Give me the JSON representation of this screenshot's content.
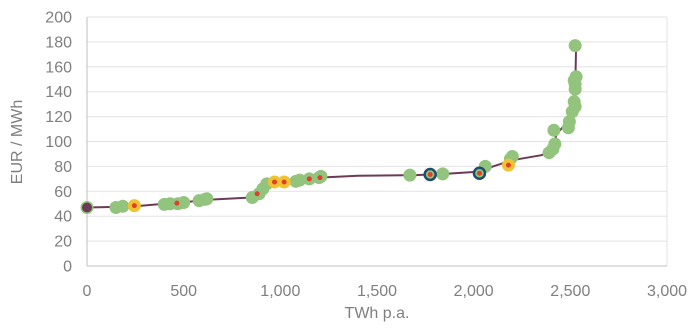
{
  "chart_data": {
    "type": "scatter",
    "title": "",
    "xlabel": "TWh p.a.",
    "ylabel": "EUR / MWh",
    "xlim": [
      0,
      3000
    ],
    "ylim": [
      0,
      200
    ],
    "x_ticks": [
      0,
      500,
      1000,
      1500,
      2000,
      2500,
      3000
    ],
    "x_tick_labels": [
      "0",
      "500",
      "1,000",
      "1,500",
      "2,000",
      "2,500",
      "3,000"
    ],
    "y_ticks": [
      0,
      20,
      40,
      60,
      80,
      100,
      120,
      140,
      160,
      180,
      200
    ],
    "y_tick_labels": [
      "0",
      "20",
      "40",
      "60",
      "80",
      "100",
      "120",
      "140",
      "160",
      "180",
      "200"
    ],
    "grid": "horizontal",
    "legend": "none",
    "colors": {
      "line": "#6b3a57",
      "green": "#93c47d",
      "yellow": "#f1c232",
      "navy": "#1f4e6b",
      "dot": "#e0402a",
      "axis": "#bfbfbf",
      "grid": "#e3e3e3",
      "text": "#7f7f7f"
    },
    "series": [
      {
        "style": "line",
        "color": "#6b3a57",
        "points": [
          [
            0,
            47
          ],
          [
            150,
            47.5
          ],
          [
            250,
            48
          ],
          [
            400,
            50
          ],
          [
            500,
            51
          ],
          [
            600,
            53
          ],
          [
            850,
            55
          ],
          [
            900,
            60
          ],
          [
            930,
            66
          ],
          [
            1000,
            68
          ],
          [
            1100,
            69
          ],
          [
            1200,
            71
          ],
          [
            1400,
            72.5
          ],
          [
            1700,
            73
          ],
          [
            1850,
            74
          ],
          [
            2050,
            76
          ],
          [
            2100,
            80
          ],
          [
            2200,
            85
          ],
          [
            2350,
            89
          ],
          [
            2400,
            92
          ],
          [
            2430,
            106
          ],
          [
            2480,
            115
          ],
          [
            2510,
            124
          ],
          [
            2525,
            140
          ],
          [
            2530,
            178
          ]
        ]
      },
      {
        "style": "marker",
        "marker": "green",
        "points": [
          [
            0,
            47
          ],
          [
            150,
            47
          ],
          [
            185,
            48
          ],
          [
            400,
            49.5
          ],
          [
            430,
            50
          ],
          [
            470,
            50
          ],
          [
            500,
            51
          ],
          [
            580,
            52.5
          ],
          [
            610,
            53.5
          ],
          [
            620,
            54
          ],
          [
            855,
            55
          ],
          [
            890,
            58
          ],
          [
            910,
            62
          ],
          [
            930,
            66
          ],
          [
            1080,
            68
          ],
          [
            1100,
            69
          ],
          [
            1150,
            70
          ],
          [
            1200,
            71
          ],
          [
            1210,
            72
          ],
          [
            1670,
            73
          ],
          [
            1840,
            74
          ],
          [
            2060,
            80
          ],
          [
            2190,
            86
          ],
          [
            2200,
            88
          ],
          [
            2390,
            91
          ],
          [
            2410,
            94
          ],
          [
            2420,
            98
          ],
          [
            2415,
            109
          ],
          [
            2490,
            111
          ],
          [
            2495,
            116
          ],
          [
            2510,
            124
          ],
          [
            2525,
            128
          ],
          [
            2520,
            132
          ],
          [
            2525,
            142
          ],
          [
            2525,
            146
          ],
          [
            2520,
            149
          ],
          [
            2530,
            152
          ],
          [
            2525,
            177
          ]
        ]
      },
      {
        "style": "marker",
        "marker": "yellow",
        "points": [
          [
            245,
            48.5
          ],
          [
            970,
            67.5
          ],
          [
            1020,
            67.5
          ],
          [
            2180,
            81
          ]
        ]
      },
      {
        "style": "marker",
        "marker": "navy",
        "points": [
          [
            1775,
            73.5
          ],
          [
            2030,
            74.5
          ]
        ]
      },
      {
        "style": "marker",
        "marker": "small-red",
        "points": [
          [
            245,
            48.5
          ],
          [
            465,
            50.5
          ],
          [
            880,
            58
          ],
          [
            970,
            67.5
          ],
          [
            1020,
            67.5
          ],
          [
            1150,
            70
          ],
          [
            1205,
            71
          ],
          [
            1775,
            73.5
          ],
          [
            2030,
            74.5
          ],
          [
            2180,
            81
          ]
        ]
      },
      {
        "style": "marker",
        "marker": "start",
        "points": [
          [
            0,
            47
          ]
        ]
      }
    ]
  }
}
